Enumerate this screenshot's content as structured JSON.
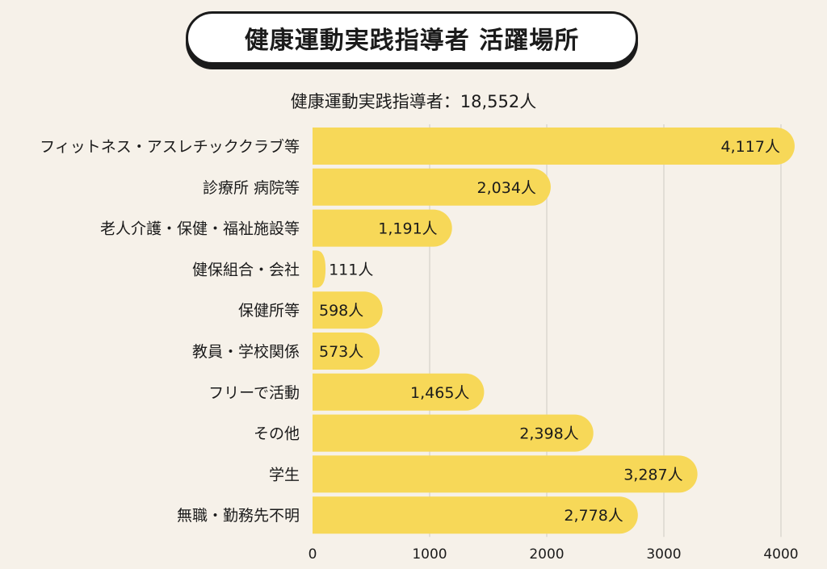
{
  "header": {
    "title": "健康運動実践指導者 活躍場所",
    "subtitle": "健康運動実践指導者：18,552人"
  },
  "colors": {
    "background": "#f6f1e9",
    "bar": "#f7d858",
    "grid": "#dcd8d0",
    "text": "#1b1b1b"
  },
  "chart_data": {
    "type": "bar",
    "orientation": "horizontal",
    "title": "健康運動実践指導者 活躍場所",
    "subtitle": "健康運動実践指導者：18,552人",
    "categories": [
      "フィットネス・アスレチッククラブ等",
      "診療所 病院等",
      "老人介護・保健・福祉施設等",
      "健保組合・会社",
      "保健所等",
      "教員・学校関係",
      "フリーで活動",
      "その他",
      "学生",
      "無職・勤務先不明"
    ],
    "values": [
      4117,
      2034,
      1191,
      111,
      598,
      573,
      1465,
      2398,
      3287,
      2778
    ],
    "data_labels": [
      "4,117人",
      "2,034人",
      "1,191人",
      "111人",
      "598人",
      "573人",
      "1,465人",
      "2,398人",
      "3,287人",
      "2,778人"
    ],
    "xlim": [
      0,
      4000
    ],
    "x_ticks": [
      0,
      1000,
      2000,
      3000,
      4000
    ],
    "x_tick_labels": [
      "0",
      "1000",
      "2000",
      "3000",
      "4000"
    ],
    "xlabel": "",
    "ylabel": "",
    "grid": true,
    "legend": "none"
  }
}
